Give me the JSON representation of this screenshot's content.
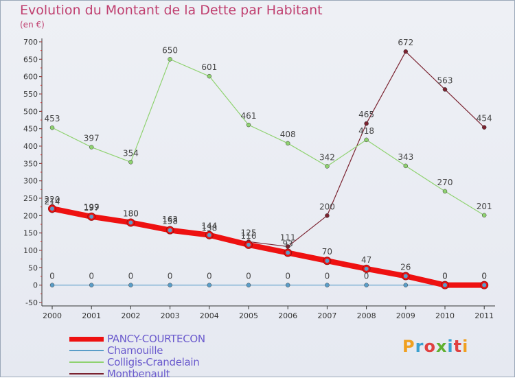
{
  "header": {
    "title": "Evolution du Montant de la Dette par Habitant",
    "unit": "(en €)"
  },
  "logo": {
    "text": "Proxiti",
    "colors": [
      "#f0a020",
      "#3aa0d0",
      "#e04040",
      "#60b030",
      "#3aa0d0",
      "#e04040",
      "#f0a020"
    ]
  },
  "chart_data": {
    "type": "line",
    "categories": [
      "2000",
      "2001",
      "2002",
      "2003",
      "2004",
      "2005",
      "2006",
      "2007",
      "2008",
      "2009",
      "2010",
      "2011"
    ],
    "ylim": [
      -50,
      700
    ],
    "yticks": [
      -50,
      0,
      50,
      100,
      150,
      200,
      250,
      300,
      350,
      400,
      450,
      500,
      550,
      600,
      650,
      700
    ],
    "grid": false,
    "legend_position": "bottom-left",
    "series": [
      {
        "name": "Montbenault",
        "color": "#7b2330",
        "width": 1.2,
        "values": [
          214,
          199,
          180,
          163,
          138,
          125,
          111,
          200,
          465,
          672,
          563,
          454
        ],
        "labels": [
          "214",
          "199",
          "180",
          "163",
          "138",
          "125",
          "111",
          "200",
          "465",
          "672",
          "563",
          "454"
        ]
      },
      {
        "name": "Colligis-Crandelain",
        "color": "#8fd270",
        "width": 1.2,
        "values": [
          453,
          397,
          354,
          650,
          601,
          461,
          408,
          342,
          418,
          343,
          270,
          201
        ],
        "labels": [
          "453",
          "397",
          "354",
          "650",
          "601",
          "461",
          "408",
          "342",
          "418",
          "343",
          "270",
          "201"
        ]
      },
      {
        "name": "Chamouille",
        "color": "#5a9dc8",
        "width": 1.2,
        "values": [
          0,
          0,
          0,
          0,
          0,
          0,
          0,
          0,
          0,
          0,
          0,
          0
        ],
        "labels": [
          "0",
          "0",
          "0",
          "0",
          "0",
          "0",
          "0",
          "0",
          "0",
          "0",
          "0",
          "0"
        ]
      },
      {
        "name": "PANCY-COURTECON",
        "color": "#ee1111",
        "width": 8,
        "values": [
          220,
          197,
          180,
          158,
          144,
          116,
          93,
          70,
          47,
          26,
          0,
          0
        ],
        "labels": [
          "220",
          "197",
          "180",
          "158",
          "144",
          "116",
          "93",
          "70",
          "47",
          "26",
          "0",
          "0"
        ]
      }
    ],
    "legend": [
      "PANCY-COURTECON",
      "Chamouille",
      "Colligis-Crandelain",
      "Montbenault"
    ]
  }
}
